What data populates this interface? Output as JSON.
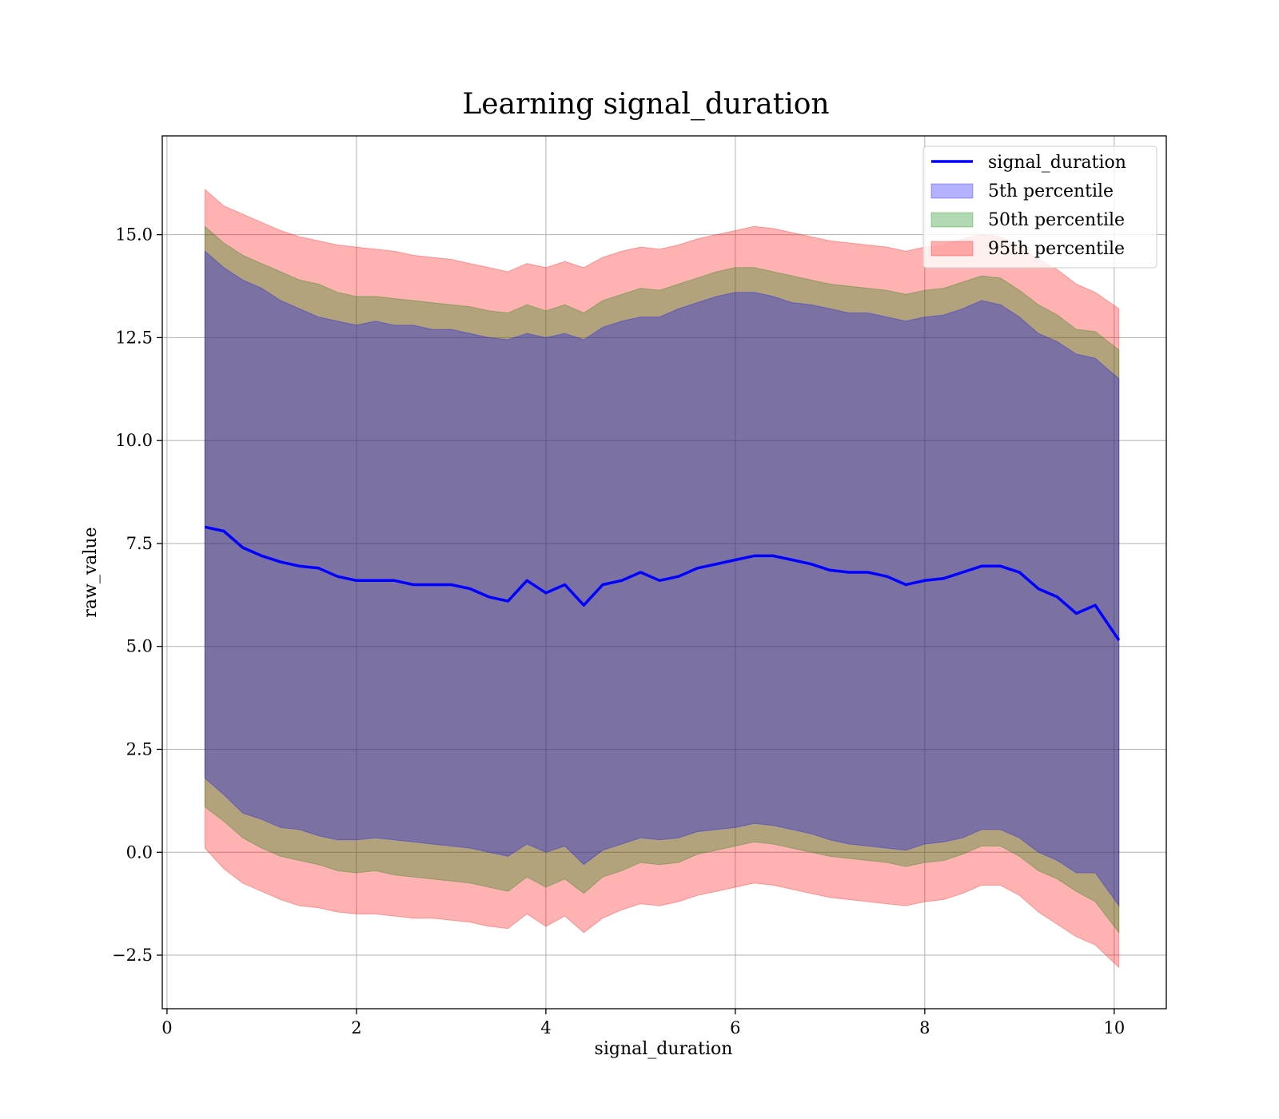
{
  "chart_data": {
    "type": "area",
    "title": "Learning signal_duration",
    "xlabel": "signal_duration",
    "ylabel": "raw_value",
    "xlim": [
      -0.05,
      10.55
    ],
    "ylim": [
      -3.8,
      17.4
    ],
    "xticks": [
      0,
      2,
      4,
      6,
      8,
      10
    ],
    "xtick_labels": [
      "0",
      "2",
      "4",
      "6",
      "8",
      "10"
    ],
    "yticks": [
      -2.5,
      0.0,
      2.5,
      5.0,
      7.5,
      10.0,
      12.5,
      15.0
    ],
    "ytick_labels": [
      "−2.5",
      "0.0",
      "2.5",
      "5.0",
      "7.5",
      "10.0",
      "12.5",
      "15.0"
    ],
    "grid": true,
    "legend_position": "top-right",
    "line_color": "#0000ff",
    "band_colors": {
      "p5": "#0000ff",
      "p50": "#008000",
      "p95": "#ff0000"
    },
    "x": [
      0.4,
      0.6,
      0.8,
      1.0,
      1.2,
      1.4,
      1.6,
      1.8,
      2.0,
      2.2,
      2.4,
      2.6,
      2.8,
      3.0,
      3.2,
      3.4,
      3.6,
      3.8,
      4.0,
      4.2,
      4.4,
      4.6,
      4.8,
      5.0,
      5.2,
      5.4,
      5.6,
      5.8,
      6.0,
      6.2,
      6.4,
      6.6,
      6.8,
      7.0,
      7.2,
      7.4,
      7.6,
      7.8,
      8.0,
      8.2,
      8.4,
      8.6,
      8.8,
      9.0,
      9.2,
      9.4,
      9.6,
      9.8,
      10.05
    ],
    "series": [
      {
        "name": "signal_duration",
        "values": [
          7.9,
          7.8,
          7.4,
          7.2,
          7.05,
          6.95,
          6.9,
          6.7,
          6.6,
          6.6,
          6.6,
          6.5,
          6.5,
          6.5,
          6.4,
          6.2,
          6.1,
          6.6,
          6.3,
          6.5,
          6.0,
          6.5,
          6.6,
          6.8,
          6.6,
          6.7,
          6.9,
          7.0,
          7.1,
          7.2,
          7.2,
          7.1,
          7.0,
          6.85,
          6.8,
          6.8,
          6.7,
          6.5,
          6.6,
          6.65,
          6.8,
          6.95,
          6.95,
          6.8,
          6.4,
          6.2,
          5.8,
          6.0,
          5.15
        ]
      }
    ],
    "bands": [
      {
        "name": "5th percentile",
        "upper": [
          14.6,
          14.2,
          13.9,
          13.7,
          13.4,
          13.2,
          13.0,
          12.9,
          12.8,
          12.9,
          12.8,
          12.8,
          12.7,
          12.7,
          12.6,
          12.5,
          12.45,
          12.6,
          12.5,
          12.6,
          12.45,
          12.75,
          12.9,
          13.0,
          13.0,
          13.2,
          13.35,
          13.5,
          13.6,
          13.6,
          13.5,
          13.35,
          13.3,
          13.2,
          13.1,
          13.1,
          13.0,
          12.9,
          13.0,
          13.05,
          13.2,
          13.4,
          13.3,
          13.0,
          12.6,
          12.4,
          12.1,
          12.0,
          11.5
        ],
        "lower": [
          1.8,
          1.4,
          0.95,
          0.8,
          0.6,
          0.55,
          0.4,
          0.3,
          0.3,
          0.35,
          0.3,
          0.25,
          0.2,
          0.15,
          0.1,
          0.0,
          -0.1,
          0.2,
          0.0,
          0.15,
          -0.3,
          0.05,
          0.2,
          0.35,
          0.3,
          0.35,
          0.5,
          0.55,
          0.6,
          0.7,
          0.65,
          0.55,
          0.45,
          0.3,
          0.2,
          0.15,
          0.1,
          0.05,
          0.2,
          0.25,
          0.35,
          0.55,
          0.55,
          0.35,
          0.0,
          -0.2,
          -0.5,
          -0.5,
          -1.3
        ]
      },
      {
        "name": "50th percentile",
        "upper": [
          15.2,
          14.8,
          14.5,
          14.3,
          14.1,
          13.9,
          13.8,
          13.6,
          13.5,
          13.5,
          13.45,
          13.4,
          13.35,
          13.3,
          13.25,
          13.15,
          13.1,
          13.3,
          13.15,
          13.3,
          13.1,
          13.4,
          13.55,
          13.7,
          13.65,
          13.8,
          13.95,
          14.1,
          14.2,
          14.2,
          14.1,
          14.0,
          13.9,
          13.8,
          13.75,
          13.7,
          13.65,
          13.55,
          13.65,
          13.7,
          13.85,
          14.0,
          13.95,
          13.65,
          13.3,
          13.05,
          12.7,
          12.65,
          12.2
        ],
        "lower": [
          1.1,
          0.75,
          0.35,
          0.1,
          -0.1,
          -0.2,
          -0.3,
          -0.45,
          -0.5,
          -0.45,
          -0.55,
          -0.6,
          -0.65,
          -0.7,
          -0.75,
          -0.85,
          -0.95,
          -0.6,
          -0.85,
          -0.65,
          -1.0,
          -0.6,
          -0.45,
          -0.25,
          -0.3,
          -0.25,
          -0.05,
          0.05,
          0.15,
          0.25,
          0.2,
          0.1,
          0.0,
          -0.1,
          -0.15,
          -0.2,
          -0.25,
          -0.35,
          -0.25,
          -0.2,
          -0.05,
          0.15,
          0.15,
          -0.1,
          -0.45,
          -0.65,
          -0.95,
          -1.2,
          -1.95
        ]
      },
      {
        "name": "95th percentile",
        "upper": [
          16.1,
          15.7,
          15.5,
          15.3,
          15.1,
          14.95,
          14.85,
          14.75,
          14.7,
          14.65,
          14.6,
          14.5,
          14.45,
          14.4,
          14.3,
          14.2,
          14.1,
          14.3,
          14.2,
          14.35,
          14.2,
          14.45,
          14.6,
          14.7,
          14.65,
          14.75,
          14.9,
          15.0,
          15.1,
          15.2,
          15.15,
          15.05,
          14.95,
          14.85,
          14.8,
          14.75,
          14.7,
          14.6,
          14.7,
          14.75,
          14.9,
          15.0,
          14.95,
          14.7,
          14.4,
          14.15,
          13.8,
          13.6,
          13.2
        ],
        "lower": [
          0.1,
          -0.4,
          -0.75,
          -0.95,
          -1.15,
          -1.3,
          -1.35,
          -1.45,
          -1.5,
          -1.5,
          -1.55,
          -1.6,
          -1.6,
          -1.65,
          -1.7,
          -1.8,
          -1.85,
          -1.5,
          -1.8,
          -1.55,
          -1.95,
          -1.6,
          -1.4,
          -1.25,
          -1.3,
          -1.2,
          -1.05,
          -0.95,
          -0.85,
          -0.75,
          -0.8,
          -0.9,
          -1.0,
          -1.1,
          -1.15,
          -1.2,
          -1.25,
          -1.3,
          -1.2,
          -1.15,
          -1.0,
          -0.8,
          -0.8,
          -1.05,
          -1.45,
          -1.75,
          -2.05,
          -2.25,
          -2.8
        ]
      }
    ]
  }
}
